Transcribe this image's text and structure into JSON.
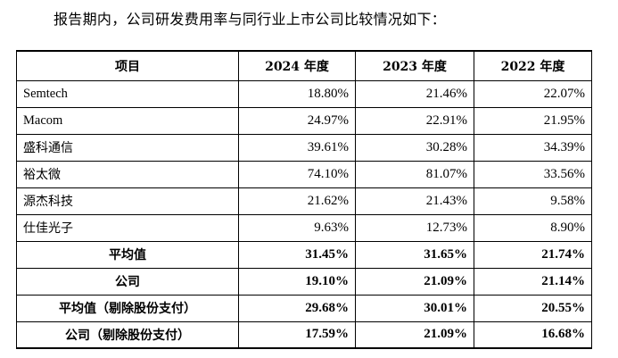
{
  "intro_text": "报告期内，公司研发费用率与同行业上市公司比较情况如下：",
  "table": {
    "headers": [
      "项目",
      "2024 年度",
      "2023 年度",
      "2022 年度"
    ],
    "rows": [
      {
        "name": "Semtech",
        "values": [
          "18.80%",
          "21.46%",
          "22.07%"
        ]
      },
      {
        "name": "Macom",
        "values": [
          "24.97%",
          "22.91%",
          "21.95%"
        ]
      },
      {
        "name": "盛科通信",
        "values": [
          "39.61%",
          "30.28%",
          "34.39%"
        ]
      },
      {
        "name": "裕太微",
        "values": [
          "74.10%",
          "81.07%",
          "33.56%"
        ]
      },
      {
        "name": "源杰科技",
        "values": [
          "21.62%",
          "21.43%",
          "9.58%"
        ]
      },
      {
        "name": "仕佳光子",
        "values": [
          "9.63%",
          "12.73%",
          "8.90%"
        ]
      }
    ],
    "summary_rows": [
      {
        "name": "平均值",
        "values": [
          "31.45%",
          "31.65%",
          "21.74%"
        ]
      },
      {
        "name": "公司",
        "values": [
          "19.10%",
          "21.09%",
          "21.14%"
        ]
      },
      {
        "name": "平均值（剔除股份支付）",
        "values": [
          "29.68%",
          "30.01%",
          "20.55%"
        ]
      },
      {
        "name": "公司（剔除股份支付）",
        "values": [
          "17.59%",
          "21.09%",
          "16.68%"
        ]
      }
    ]
  }
}
